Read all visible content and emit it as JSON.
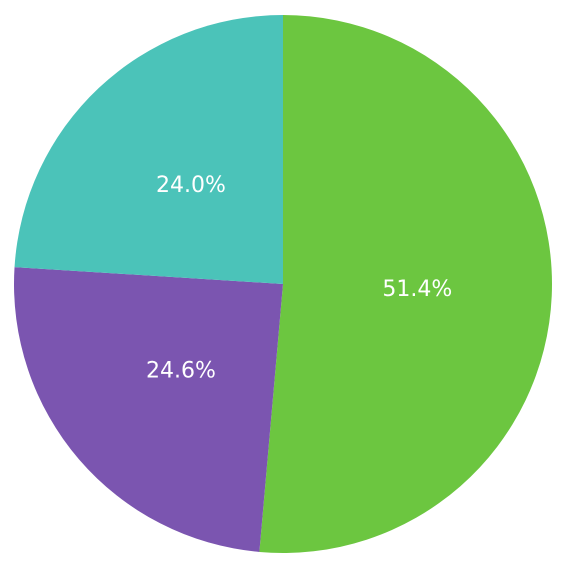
{
  "chart_data": {
    "type": "pie",
    "values": [
      51.4,
      24.6,
      24.0
    ],
    "value_labels": [
      "51.4%",
      "24.6%",
      "24.0%"
    ],
    "colors": [
      "#6cc640",
      "#7b55b0",
      "#4bc3b9"
    ]
  }
}
